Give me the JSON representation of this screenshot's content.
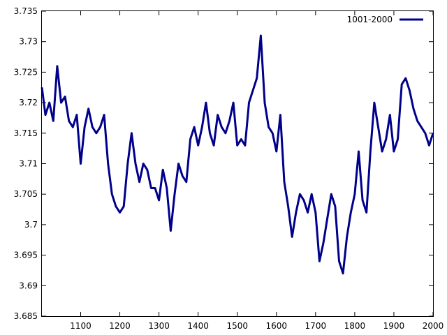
{
  "chart_data": {
    "type": "line",
    "title": "",
    "xlabel": "",
    "ylabel": "",
    "xlim": [
      1001,
      2000
    ],
    "ylim": [
      3.685,
      3.735
    ],
    "x_ticks": [
      "1100",
      "1200",
      "1300",
      "1400",
      "1500",
      "1600",
      "1700",
      "1800",
      "1900",
      "2000"
    ],
    "y_ticks": [
      "3.685",
      "3.69",
      "3.695",
      "3.7",
      "3.705",
      "3.71",
      "3.715",
      "3.72",
      "3.725",
      "3.73",
      "3.735"
    ],
    "grid": false,
    "legend_position": "top-right",
    "series": [
      {
        "name": "1001-2000",
        "color": "#00008b",
        "x": [
          1001,
          1010,
          1020,
          1030,
          1040,
          1050,
          1060,
          1070,
          1080,
          1090,
          1100,
          1110,
          1120,
          1130,
          1140,
          1150,
          1160,
          1170,
          1180,
          1190,
          1200,
          1210,
          1220,
          1230,
          1240,
          1250,
          1260,
          1270,
          1280,
          1290,
          1300,
          1310,
          1320,
          1330,
          1340,
          1350,
          1360,
          1370,
          1380,
          1390,
          1400,
          1410,
          1420,
          1430,
          1440,
          1450,
          1460,
          1470,
          1480,
          1490,
          1500,
          1510,
          1520,
          1530,
          1540,
          1550,
          1560,
          1570,
          1580,
          1590,
          1600,
          1610,
          1620,
          1630,
          1640,
          1650,
          1660,
          1670,
          1680,
          1690,
          1700,
          1710,
          1720,
          1730,
          1740,
          1750,
          1760,
          1770,
          1780,
          1790,
          1800,
          1810,
          1820,
          1830,
          1840,
          1850,
          1860,
          1870,
          1880,
          1890,
          1900,
          1910,
          1920,
          1930,
          1940,
          1950,
          1960,
          1970,
          1980,
          1990,
          2000
        ],
        "y": [
          3.7225,
          3.718,
          3.72,
          3.717,
          3.726,
          3.72,
          3.721,
          3.717,
          3.716,
          3.718,
          3.71,
          3.716,
          3.719,
          3.716,
          3.715,
          3.716,
          3.718,
          3.71,
          3.705,
          3.703,
          3.702,
          3.703,
          3.71,
          3.715,
          3.71,
          3.707,
          3.71,
          3.709,
          3.706,
          3.706,
          3.704,
          3.709,
          3.706,
          3.699,
          3.705,
          3.71,
          3.708,
          3.707,
          3.714,
          3.716,
          3.713,
          3.716,
          3.72,
          3.715,
          3.713,
          3.718,
          3.716,
          3.715,
          3.717,
          3.72,
          3.713,
          3.714,
          3.713,
          3.72,
          3.722,
          3.724,
          3.731,
          3.72,
          3.716,
          3.715,
          3.712,
          3.718,
          3.707,
          3.703,
          3.698,
          3.702,
          3.705,
          3.704,
          3.702,
          3.705,
          3.702,
          3.694,
          3.697,
          3.701,
          3.705,
          3.703,
          3.694,
          3.692,
          3.698,
          3.702,
          3.705,
          3.712,
          3.704,
          3.702,
          3.712,
          3.72,
          3.716,
          3.712,
          3.714,
          3.718,
          3.712,
          3.714,
          3.723,
          3.724,
          3.722,
          3.719,
          3.717,
          3.716,
          3.715,
          3.713,
          3.715
        ]
      }
    ]
  }
}
